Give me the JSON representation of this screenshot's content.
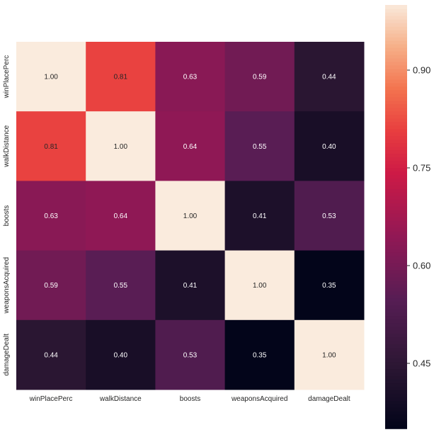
{
  "chart_data": {
    "type": "heatmap",
    "title": "",
    "x_categories": [
      "winPlacePerc",
      "walkDistance",
      "boosts",
      "weaponsAcquired",
      "damageDealt"
    ],
    "y_categories": [
      "winPlacePerc",
      "walkDistance",
      "boosts",
      "weaponsAcquired",
      "damageDealt"
    ],
    "values": [
      [
        1.0,
        0.81,
        0.63,
        0.59,
        0.44
      ],
      [
        0.81,
        1.0,
        0.64,
        0.55,
        0.4
      ],
      [
        0.63,
        0.64,
        1.0,
        0.41,
        0.53
      ],
      [
        0.59,
        0.55,
        0.41,
        1.0,
        0.35
      ],
      [
        0.44,
        0.4,
        0.53,
        0.35,
        1.0
      ]
    ],
    "annotations": [
      [
        "1.00",
        "0.81",
        "0.63",
        "0.59",
        "0.44"
      ],
      [
        "0.81",
        "1.00",
        "0.64",
        "0.55",
        "0.40"
      ],
      [
        "0.63",
        "0.64",
        "1.00",
        "0.41",
        "0.53"
      ],
      [
        "0.59",
        "0.55",
        "0.41",
        "1.00",
        "0.35"
      ],
      [
        "0.44",
        "0.40",
        "0.53",
        "0.35",
        "1.00"
      ]
    ],
    "colormap": "rocket",
    "colorbar": {
      "range": [
        0.35,
        1.0
      ],
      "ticks": [
        0.45,
        0.6,
        0.75,
        0.9
      ],
      "tick_labels": [
        "0.45",
        "0.60",
        "0.75",
        "0.90"
      ]
    },
    "grid": false,
    "legend": "none"
  }
}
